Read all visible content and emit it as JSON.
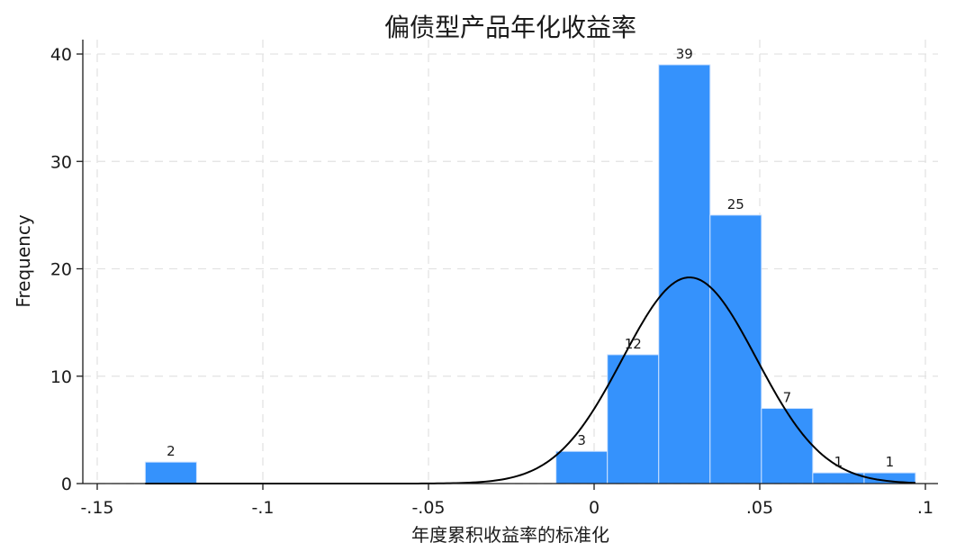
{
  "chart_data": {
    "type": "bar",
    "title": "偏债型产品年化收益率",
    "xlabel": "年度累积收益率的标准化",
    "ylabel": "Frequency",
    "xlim": [
      -0.15,
      0.1
    ],
    "ylim": [
      0,
      40
    ],
    "x_ticks": [
      {
        "value": -0.15,
        "label": "-.15"
      },
      {
        "value": -0.1,
        "label": "-.1"
      },
      {
        "value": -0.05,
        "label": "-.05"
      },
      {
        "value": 0,
        "label": "0"
      },
      {
        "value": 0.05,
        "label": ".05"
      },
      {
        "value": 0.1,
        "label": ".1"
      }
    ],
    "y_ticks": [
      {
        "value": 0,
        "label": "0"
      },
      {
        "value": 10,
        "label": "10"
      },
      {
        "value": 20,
        "label": "20"
      },
      {
        "value": 30,
        "label": "30"
      },
      {
        "value": 40,
        "label": "40"
      }
    ],
    "bars": [
      {
        "x0": -0.1355,
        "x1": -0.12,
        "value": 2,
        "label": "2"
      },
      {
        "x0": -0.0115,
        "x1": 0.004,
        "value": 3,
        "label": "3"
      },
      {
        "x0": 0.004,
        "x1": 0.0195,
        "value": 12,
        "label": "12"
      },
      {
        "x0": 0.0195,
        "x1": 0.035,
        "value": 39,
        "label": "39"
      },
      {
        "x0": 0.035,
        "x1": 0.0505,
        "value": 25,
        "label": "25"
      },
      {
        "x0": 0.0505,
        "x1": 0.066,
        "value": 7,
        "label": "7"
      },
      {
        "x0": 0.066,
        "x1": 0.0815,
        "value": 1,
        "label": "1"
      },
      {
        "x0": 0.0815,
        "x1": 0.097,
        "value": 1,
        "label": "1"
      }
    ],
    "normal_curve": {
      "mean": 0.0288,
      "sd": 0.0202,
      "peak": 19.2,
      "x_range": [
        -0.1355,
        0.097
      ]
    },
    "bar_color": "#3592fc",
    "curve_color": "#000000",
    "grid": true,
    "legend": "none"
  }
}
